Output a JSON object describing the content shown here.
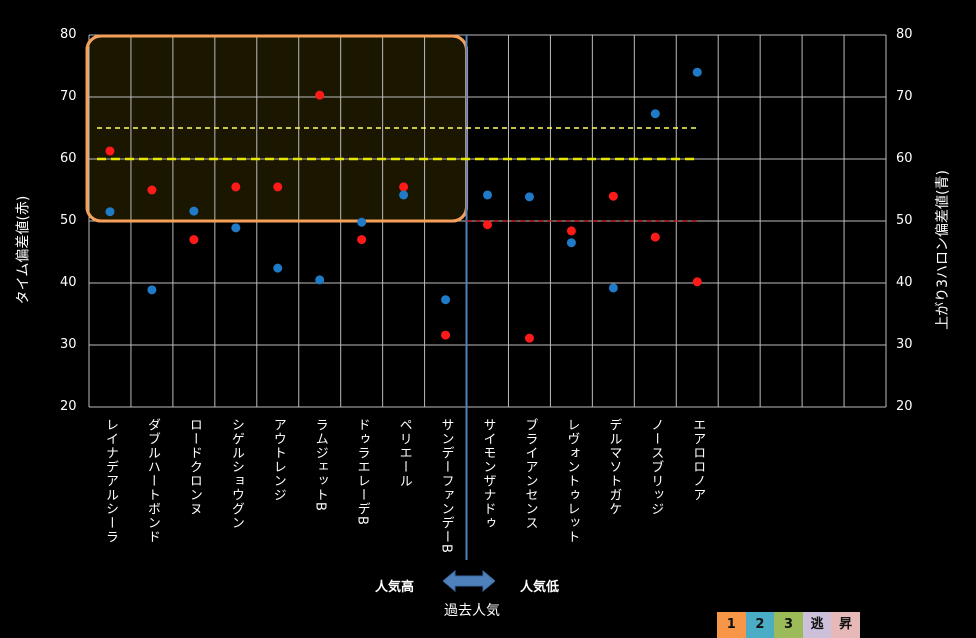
{
  "chart_data": {
    "type": "scatter",
    "categories": [
      "レイナデアルシーラ",
      "ダブルハートボンド",
      "ロードクロンヌ",
      "シゲルショウグン",
      "アウトレンジ",
      "ラムジェットB",
      "ドゥラエレーデB",
      "ペリエール",
      "サンデーファンデーB",
      "サイモンザナドゥ",
      "ブライアンセンス",
      "レヴォントゥレット",
      "デルマソトガケ",
      "ノースブリッジ",
      "エアロロノア"
    ],
    "series": [
      {
        "name": "タイム偏差値(赤)",
        "color": "#ff1a1a",
        "axis": "left",
        "values": [
          61.3,
          55.0,
          47.0,
          55.5,
          55.5,
          70.3,
          47.0,
          55.5,
          31.6,
          49.4,
          31.1,
          48.4,
          54.0,
          47.4,
          40.2
        ]
      },
      {
        "name": "上がり3ハロン偏差値(青)",
        "color": "#1f7bc8",
        "axis": "right",
        "values": [
          51.5,
          38.9,
          51.6,
          48.9,
          42.4,
          40.5,
          49.8,
          54.2,
          37.3,
          54.2,
          53.9,
          46.5,
          39.2,
          67.3,
          74.0
        ]
      }
    ],
    "num_slots": 19,
    "ylabel_left": "タイム偏差値(赤)",
    "ylabel_right": "上がり3ハロン偏差値(青)",
    "ylim": [
      20,
      80
    ],
    "yticks": [
      "20",
      "30",
      "40",
      "50",
      "60",
      "70",
      "80"
    ],
    "reference_lines": [
      {
        "value": 65,
        "color": "#ffff66",
        "from": 0,
        "to": 14
      },
      {
        "value": 60,
        "color": "#e6e600",
        "from": 0,
        "to": 14
      },
      {
        "value": 50,
        "color": "#cc2222",
        "from": 9,
        "to": 14
      }
    ],
    "highlight_box": {
      "y_range": [
        50,
        80
      ],
      "slots": [
        0,
        9
      ],
      "color": "#f5a05a"
    },
    "divider_after_slot": 9,
    "grid": true
  },
  "annotations": {
    "high": "人気高",
    "low": "人気低",
    "axis": "過去人気"
  },
  "legend": [
    {
      "label": "1",
      "color": "#f79646"
    },
    {
      "label": "2",
      "color": "#4bacc6"
    },
    {
      "label": "3",
      "color": "#9bbb59"
    },
    {
      "label": "逃",
      "color": "#ccc0da"
    },
    {
      "label": "昇",
      "color": "#e6b9b8"
    }
  ]
}
